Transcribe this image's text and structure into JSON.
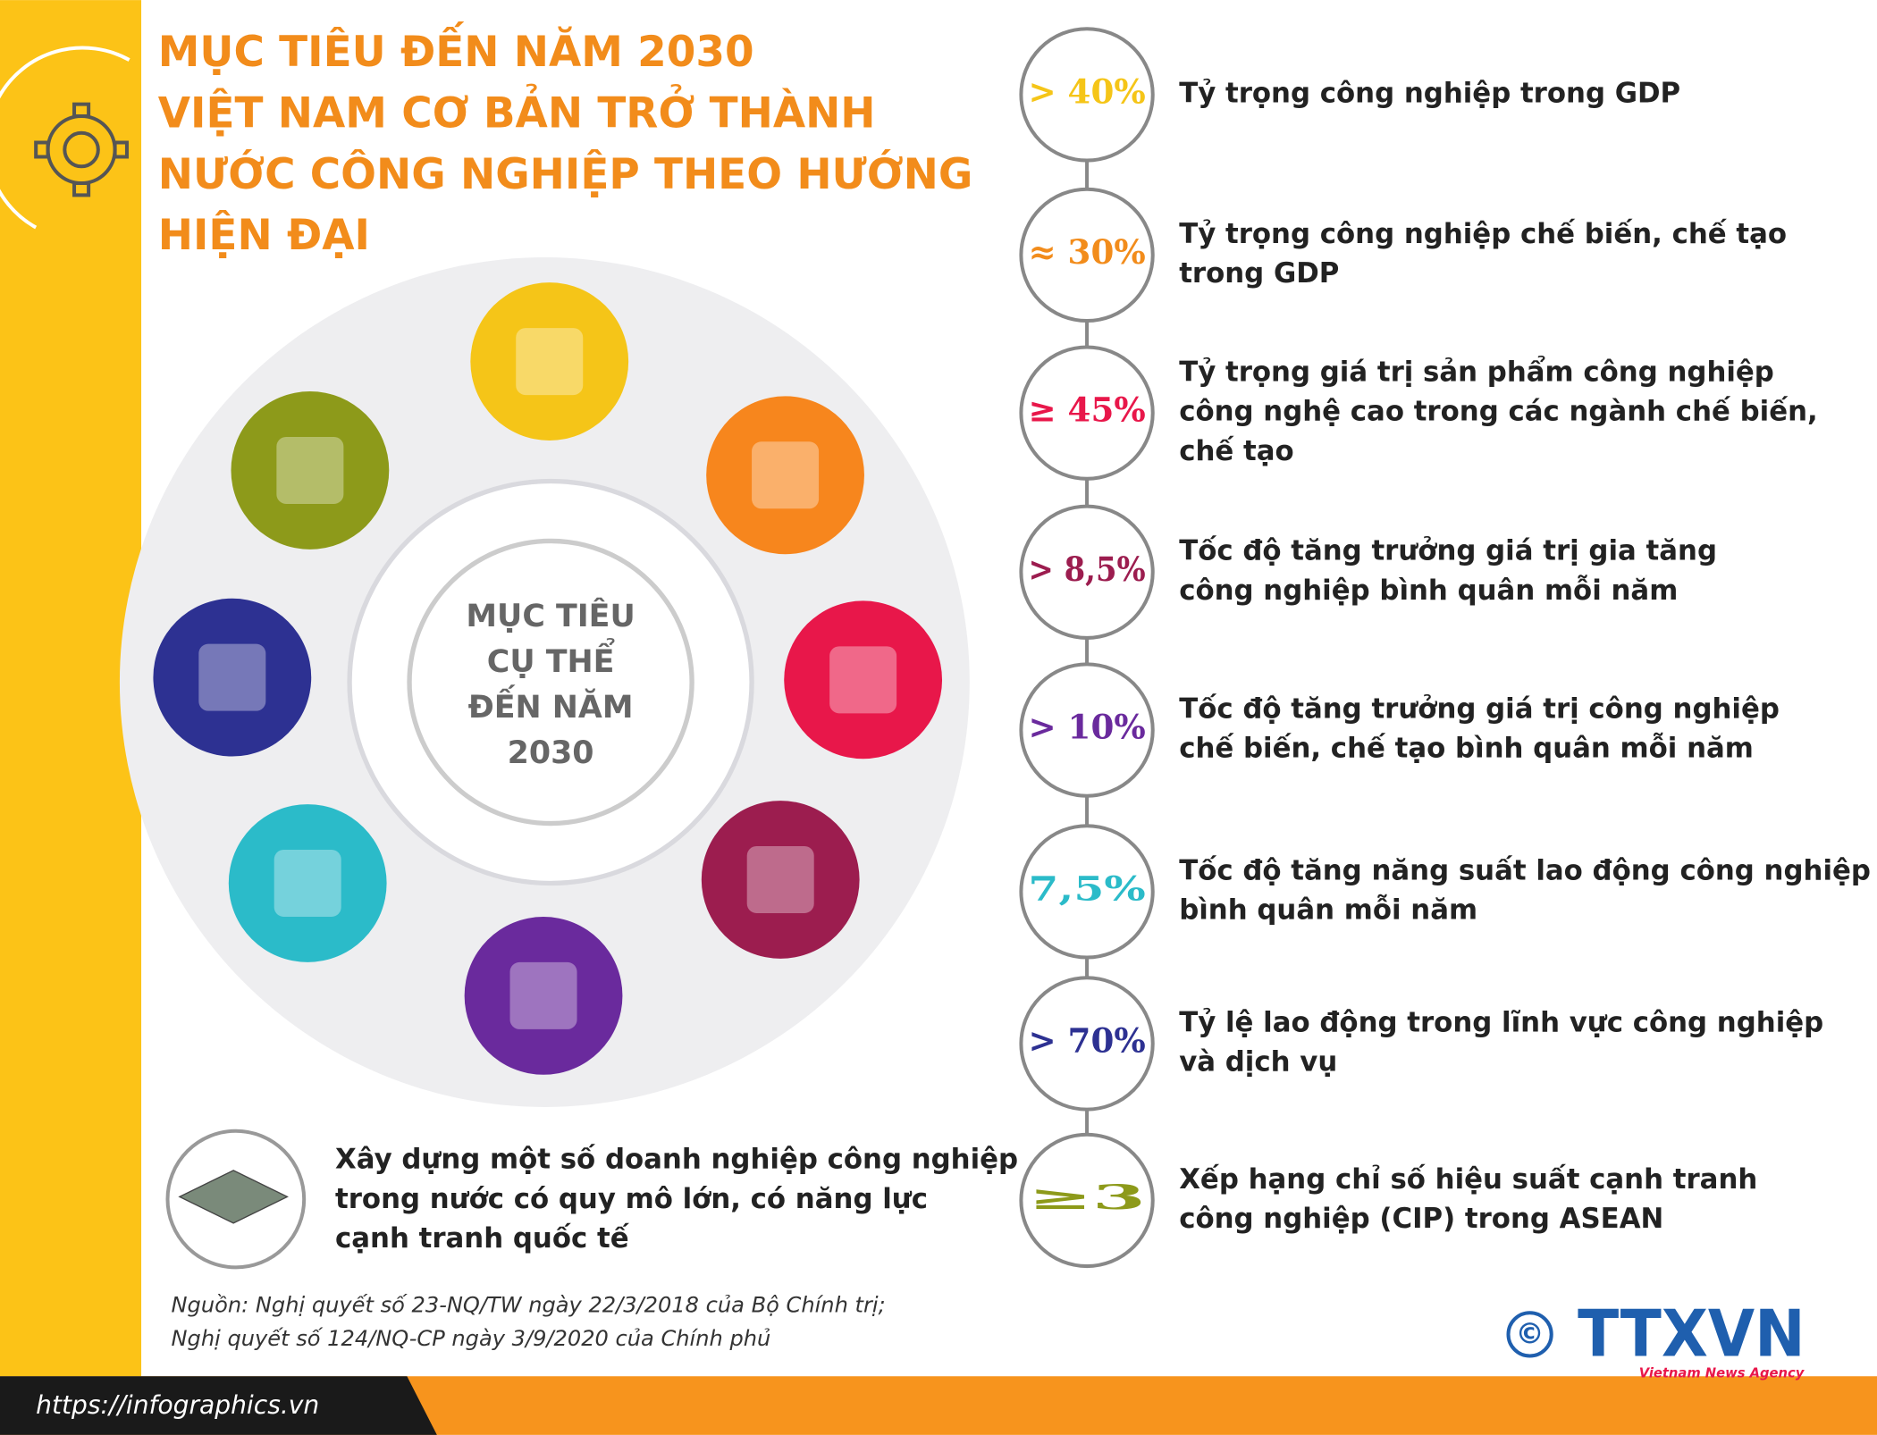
{
  "header": {
    "title": [
      "MỤC TIÊU ĐẾN NĂM 2030",
      "VIỆT NAM CƠ BẢN TRỞ THÀNH",
      "NƯỚC CÔNG NGHIỆP THEO HƯỚNG",
      "HIỆN ĐẠI"
    ]
  },
  "center": {
    "label": [
      "MỤC TIÊU",
      "CỤ THỂ",
      "ĐẾN NĂM",
      "2030"
    ]
  },
  "targets": [
    {
      "value": "> 40%",
      "lines": [
        "Tỷ trọng công nghiệp trong GDP"
      ]
    },
    {
      "value": "≈ 30%",
      "lines": [
        "Tỷ trọng công nghiệp chế biến, chế tạo",
        "trong GDP"
      ]
    },
    {
      "value": "≥ 45%",
      "lines": [
        "Tỷ trọng giá trị sản phẩm công nghiệp",
        "công nghệ cao trong các ngành chế biến,",
        "chế tạo"
      ]
    },
    {
      "value": "> 8,5%",
      "lines": [
        "Tốc độ tăng trưởng giá trị gia tăng",
        "công nghiệp bình quân mỗi năm"
      ]
    },
    {
      "value": "> 10%",
      "lines": [
        "Tốc độ tăng trưởng giá trị công nghiệp",
        "chế biến, chế tạo bình quân mỗi năm"
      ]
    },
    {
      "value": "7,5%",
      "lines": [
        "Tốc độ tăng năng suất lao động công nghiệp",
        "bình quân mỗi năm"
      ]
    },
    {
      "value": "> 70%",
      "lines": [
        "Tỷ lệ lao động trong lĩnh vực công nghiệp",
        "và dịch vụ"
      ]
    },
    {
      "value": "≥3",
      "lines": [
        "Xếp hạng chỉ số hiệu suất cạnh tranh",
        "công nghiệp (CIP) trong ASEAN"
      ]
    }
  ],
  "bottom_item": {
    "lines": [
      "Xây dựng một số doanh nghiệp công nghiệp",
      "trong nước có quy mô lớn, có năng lực",
      "cạnh tranh quốc tế"
    ]
  },
  "source": [
    "Nguồn: Nghị quyết số 23-NQ/TW ngày 22/3/2018 của Bộ Chính trị;",
    "Nghị quyết số 124/NQ-CP ngày 3/9/2020 của Chính phủ"
  ],
  "footer": {
    "website": "https://infographics.vn",
    "copyright": "©",
    "logo": "TTXVN",
    "agency": "Vietnam News Agency"
  }
}
